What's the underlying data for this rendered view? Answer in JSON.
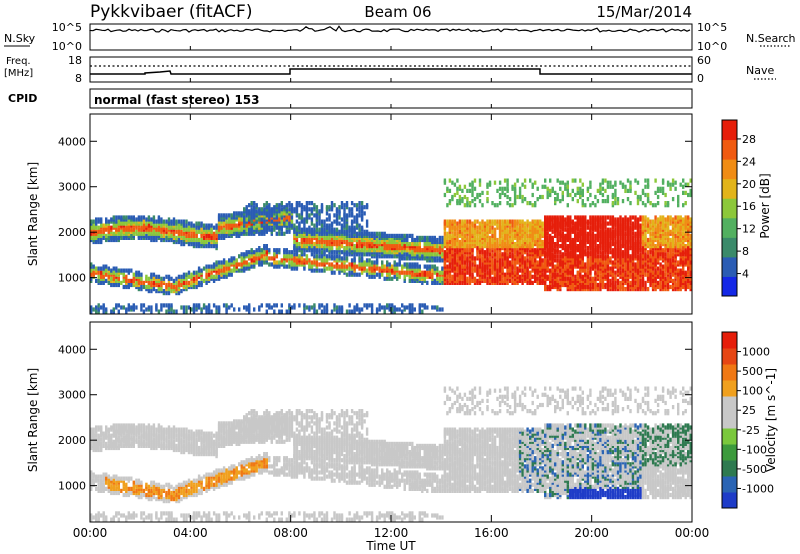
{
  "header": {
    "station": "Pykkvibaer (fitACF)",
    "beam": "Beam 06",
    "date": "15/Mar/2014"
  },
  "top_panels": {
    "nsky": {
      "label": "N.Sky",
      "right_label": "N.Search",
      "left_ticks": [
        "10^5",
        "10^0"
      ],
      "right_ticks": [
        "10^5",
        "10^0"
      ]
    },
    "freq": {
      "label_line1": "Freq.",
      "label_line2": "[MHz]",
      "right_label": "Nave",
      "left_ticks": [
        "18",
        "8"
      ],
      "right_ticks": [
        "60",
        "0"
      ]
    },
    "cpid": {
      "label": "CPID",
      "text": "normal (fast stereo) 153"
    }
  },
  "chart_data": [
    {
      "type": "heatmap",
      "name": "power",
      "ylabel": "Slant Range [km]",
      "ylim": [
        200,
        4600
      ],
      "yticks": [
        "1000",
        "2000",
        "3000",
        "4000"
      ],
      "xlim": [
        "00:00",
        "24:00"
      ],
      "colorbar": {
        "label": "Power [dB]",
        "ticks": [
          "4",
          "8",
          "12",
          "16",
          "20",
          "24",
          "28"
        ],
        "colors": [
          "#1428e6",
          "#2a5cb4",
          "#3a8a6a",
          "#52b060",
          "#8cc83a",
          "#e2b41a",
          "#f08c14",
          "#f05a10",
          "#e61e0a"
        ]
      },
      "scatter_bands": [
        {
          "t_start": 0.0,
          "t_end": 3.0,
          "r_start": 1500,
          "r_end": 2300,
          "level": "high"
        },
        {
          "t_start": 8.0,
          "t_end": 16.0,
          "r_start": 1000,
          "r_end": 2000,
          "level": "mid"
        },
        {
          "t_start": 16.5,
          "t_end": 22.0,
          "r_start": 900,
          "r_end": 2300,
          "level": "max"
        }
      ]
    },
    {
      "type": "heatmap",
      "name": "velocity",
      "ylabel": "Slant Range [km]",
      "ylim": [
        200,
        4600
      ],
      "yticks": [
        "1000",
        "2000",
        "3000",
        "4000"
      ],
      "xlim": [
        "00:00",
        "24:00"
      ],
      "xticks": [
        "00:00",
        "04:00",
        "08:00",
        "12:00",
        "16:00",
        "20:00",
        "00:00"
      ],
      "xlabel": "Time UT",
      "colorbar": {
        "label": "Velocity [m s^-1]",
        "ticks": [
          "1000",
          "500",
          "100",
          "25",
          "-25",
          "-100",
          "-500",
          "-1000"
        ],
        "colors": [
          "#1e3cc8",
          "#2a64b4",
          "#2e7a50",
          "#3c9a3c",
          "#7ac83c",
          "#c8c8c8",
          "#c8c8c8",
          "#f0a01e",
          "#f07814",
          "#e64614",
          "#e61e0a"
        ]
      }
    }
  ]
}
